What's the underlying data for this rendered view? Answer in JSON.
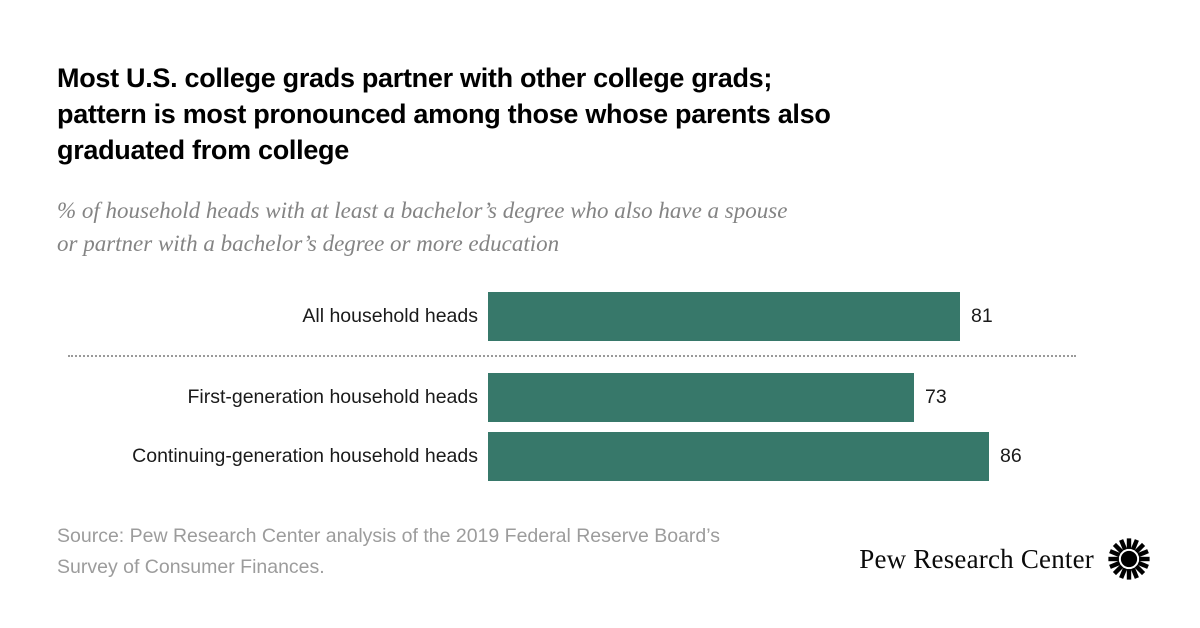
{
  "chart_data": {
    "type": "bar",
    "orientation": "horizontal",
    "title": "Most U.S. college grads partner with other college grads; pattern is most pronounced among those whose parents also graduated from college",
    "subtitle": "% of household heads with at least a bachelor’s degree who also have a spouse or partner with a bachelor’s degree or more education",
    "categories": [
      "All household heads",
      "First-generation household heads",
      "Continuing-generation household heads"
    ],
    "values": [
      81,
      73,
      86
    ],
    "xlim": [
      0,
      100
    ],
    "bar_color": "#37786A",
    "grid": "off",
    "legend": "none",
    "value_labels": "outside-end",
    "separator_after_index": 0,
    "source": "Source: Pew Research Center analysis of the 2019 Federal Reserve Board’s Survey of Consumer Finances."
  },
  "header": {
    "title_lines": [
      "Most U.S. college grads partner with other college grads;",
      "pattern is most pronounced among those whose parents also",
      "graduated from college"
    ],
    "subtitle_lines": [
      "% of household heads with at least a bachelor’s degree who also have a spouse",
      "or partner with a bachelor’s degree or more education"
    ]
  },
  "footer": {
    "source_lines": [
      "Source: Pew Research Center analysis of the 2019 Federal Reserve Board’s",
      "Survey of Consumer Finances."
    ],
    "logo_text": "Pew Research Center"
  },
  "colors": {
    "title": "#000000",
    "subtitle": "#848484",
    "bar": "#37786A",
    "category_label": "#1a1a1a",
    "value_label": "#1a1a1a",
    "source": "#9c9c9c",
    "separator": "#9a9a9a",
    "background": "#ffffff"
  }
}
